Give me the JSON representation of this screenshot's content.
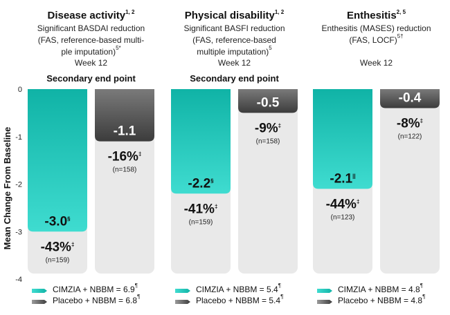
{
  "chart_data": {
    "type": "bar",
    "ylabel": "Mean Change From Baseline",
    "ylim": [
      -4,
      0
    ],
    "yticks": [
      "0",
      "-1",
      "-2",
      "-3",
      "-4"
    ],
    "series": [
      {
        "name": "CIMZIA + NBBM",
        "color": "#1ab8ad"
      },
      {
        "name": "Placebo + NBBM",
        "color": "#5a5a5a"
      }
    ],
    "groups": [
      {
        "title": "Disease activity",
        "title_sup": "1, 2",
        "subtitle": [
          "Significant BASDAI reduction",
          "(FAS, reference-based multi-",
          "ple imputation)"
        ],
        "subtitle_sup": "5*",
        "week": "Week 12",
        "secondary": "Secondary end point",
        "bars": [
          {
            "series": "CIMZIA + NBBM",
            "value": -3.0,
            "label": "-3.0",
            "label_sup": "§",
            "pct": "-43%",
            "pct_sup": "‡",
            "n": "(n=159)"
          },
          {
            "series": "Placebo + NBBM",
            "value": -1.1,
            "label": "-1.1",
            "label_sup": "",
            "pct": "-16%",
            "pct_sup": "‡",
            "n": "(n=158)"
          }
        ],
        "legend": [
          "CIMZIA + NBBM = 6.9",
          "Placebo + NBBM = 6.8"
        ],
        "legend_sup": "¶"
      },
      {
        "title": "Physical disability",
        "title_sup": "1, 2",
        "subtitle": [
          "Significant BASFI reduction",
          "(FAS, reference-based",
          "multiple imputation)"
        ],
        "subtitle_sup": "5",
        "week": "Week 12",
        "secondary": "Secondary end point",
        "bars": [
          {
            "series": "CIMZIA + NBBM",
            "value": -2.2,
            "label": "-2.2",
            "label_sup": "§",
            "pct": "-41%",
            "pct_sup": "‡",
            "n": "(n=159)"
          },
          {
            "series": "Placebo + NBBM",
            "value": -0.5,
            "label": "-0.5",
            "label_sup": "",
            "pct": "-9%",
            "pct_sup": "‡",
            "n": "(n=158)"
          }
        ],
        "legend": [
          "CIMZIA + NBBM = 5.4",
          "Placebo + NBBM = 5.4"
        ],
        "legend_sup": "¶"
      },
      {
        "title": "Enthesitis",
        "title_sup": "2, 5",
        "subtitle": [
          "Enthesitis (MASES) reduction",
          "(FAS, LOCF)"
        ],
        "subtitle_sup": "5†",
        "week": "Week 12",
        "secondary": "",
        "bars": [
          {
            "series": "CIMZIA + NBBM",
            "value": -2.1,
            "label": "-2.1",
            "label_sup": "||",
            "pct": "-44%",
            "pct_sup": "‡",
            "n": "(n=123)"
          },
          {
            "series": "Placebo + NBBM",
            "value": -0.4,
            "label": "-0.4",
            "label_sup": "",
            "pct": "-8%",
            "pct_sup": "‡",
            "n": "(n=122)"
          }
        ],
        "legend": [
          "CIMZIA + NBBM = 4.8",
          "Placebo + NBBM = 4.8"
        ],
        "legend_sup": "¶"
      }
    ]
  }
}
